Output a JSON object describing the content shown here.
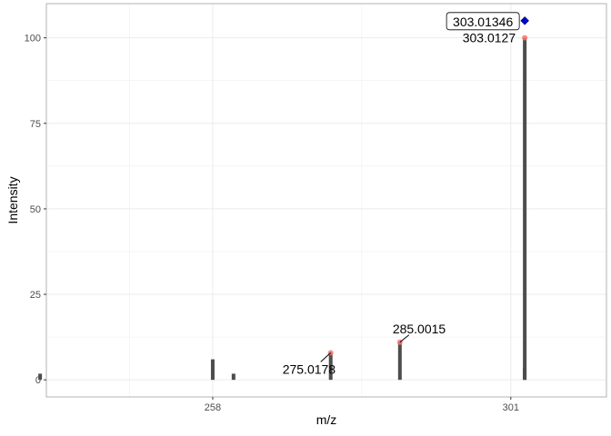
{
  "chart_data": {
    "type": "bar",
    "xlabel": "m/z",
    "ylabel": "Intensity",
    "xlim": [
      234.0,
      314.8
    ],
    "ylim": [
      -5,
      110
    ],
    "x_ticks": [
      258,
      301
    ],
    "y_ticks": [
      0,
      25,
      50,
      75,
      100
    ],
    "grid": true,
    "series": [
      {
        "values": [
          {
            "mz": 233.1,
            "intensity": 1.8
          },
          {
            "mz": 258.0,
            "intensity": 6.0
          },
          {
            "mz": 261.0,
            "intensity": 1.8
          },
          {
            "mz": 275.0178,
            "intensity": 7.9
          },
          {
            "mz": 285.0015,
            "intensity": 11.0
          },
          {
            "mz": 303.0127,
            "intensity": 100.0
          },
          {
            "mz": 303.0,
            "intensity": 3.6
          }
        ]
      }
    ],
    "matched_peaks": [
      {
        "mz": 275.0178,
        "intensity": 7.9,
        "label": "275.0178"
      },
      {
        "mz": 285.0015,
        "intensity": 11.0,
        "label": "285.0015"
      },
      {
        "mz": 303.0127,
        "intensity": 100.0,
        "label": "303.0127"
      }
    ],
    "precursor": {
      "mz": 303.01346,
      "intensity": 105.0,
      "label": "303.01346"
    },
    "colors": {
      "bar": "#4d4d4d",
      "matched_point": "#f8766d",
      "precursor_point": "#0000cc",
      "grid": "#ebebeb",
      "panel_border": "#b3b3b3"
    }
  }
}
